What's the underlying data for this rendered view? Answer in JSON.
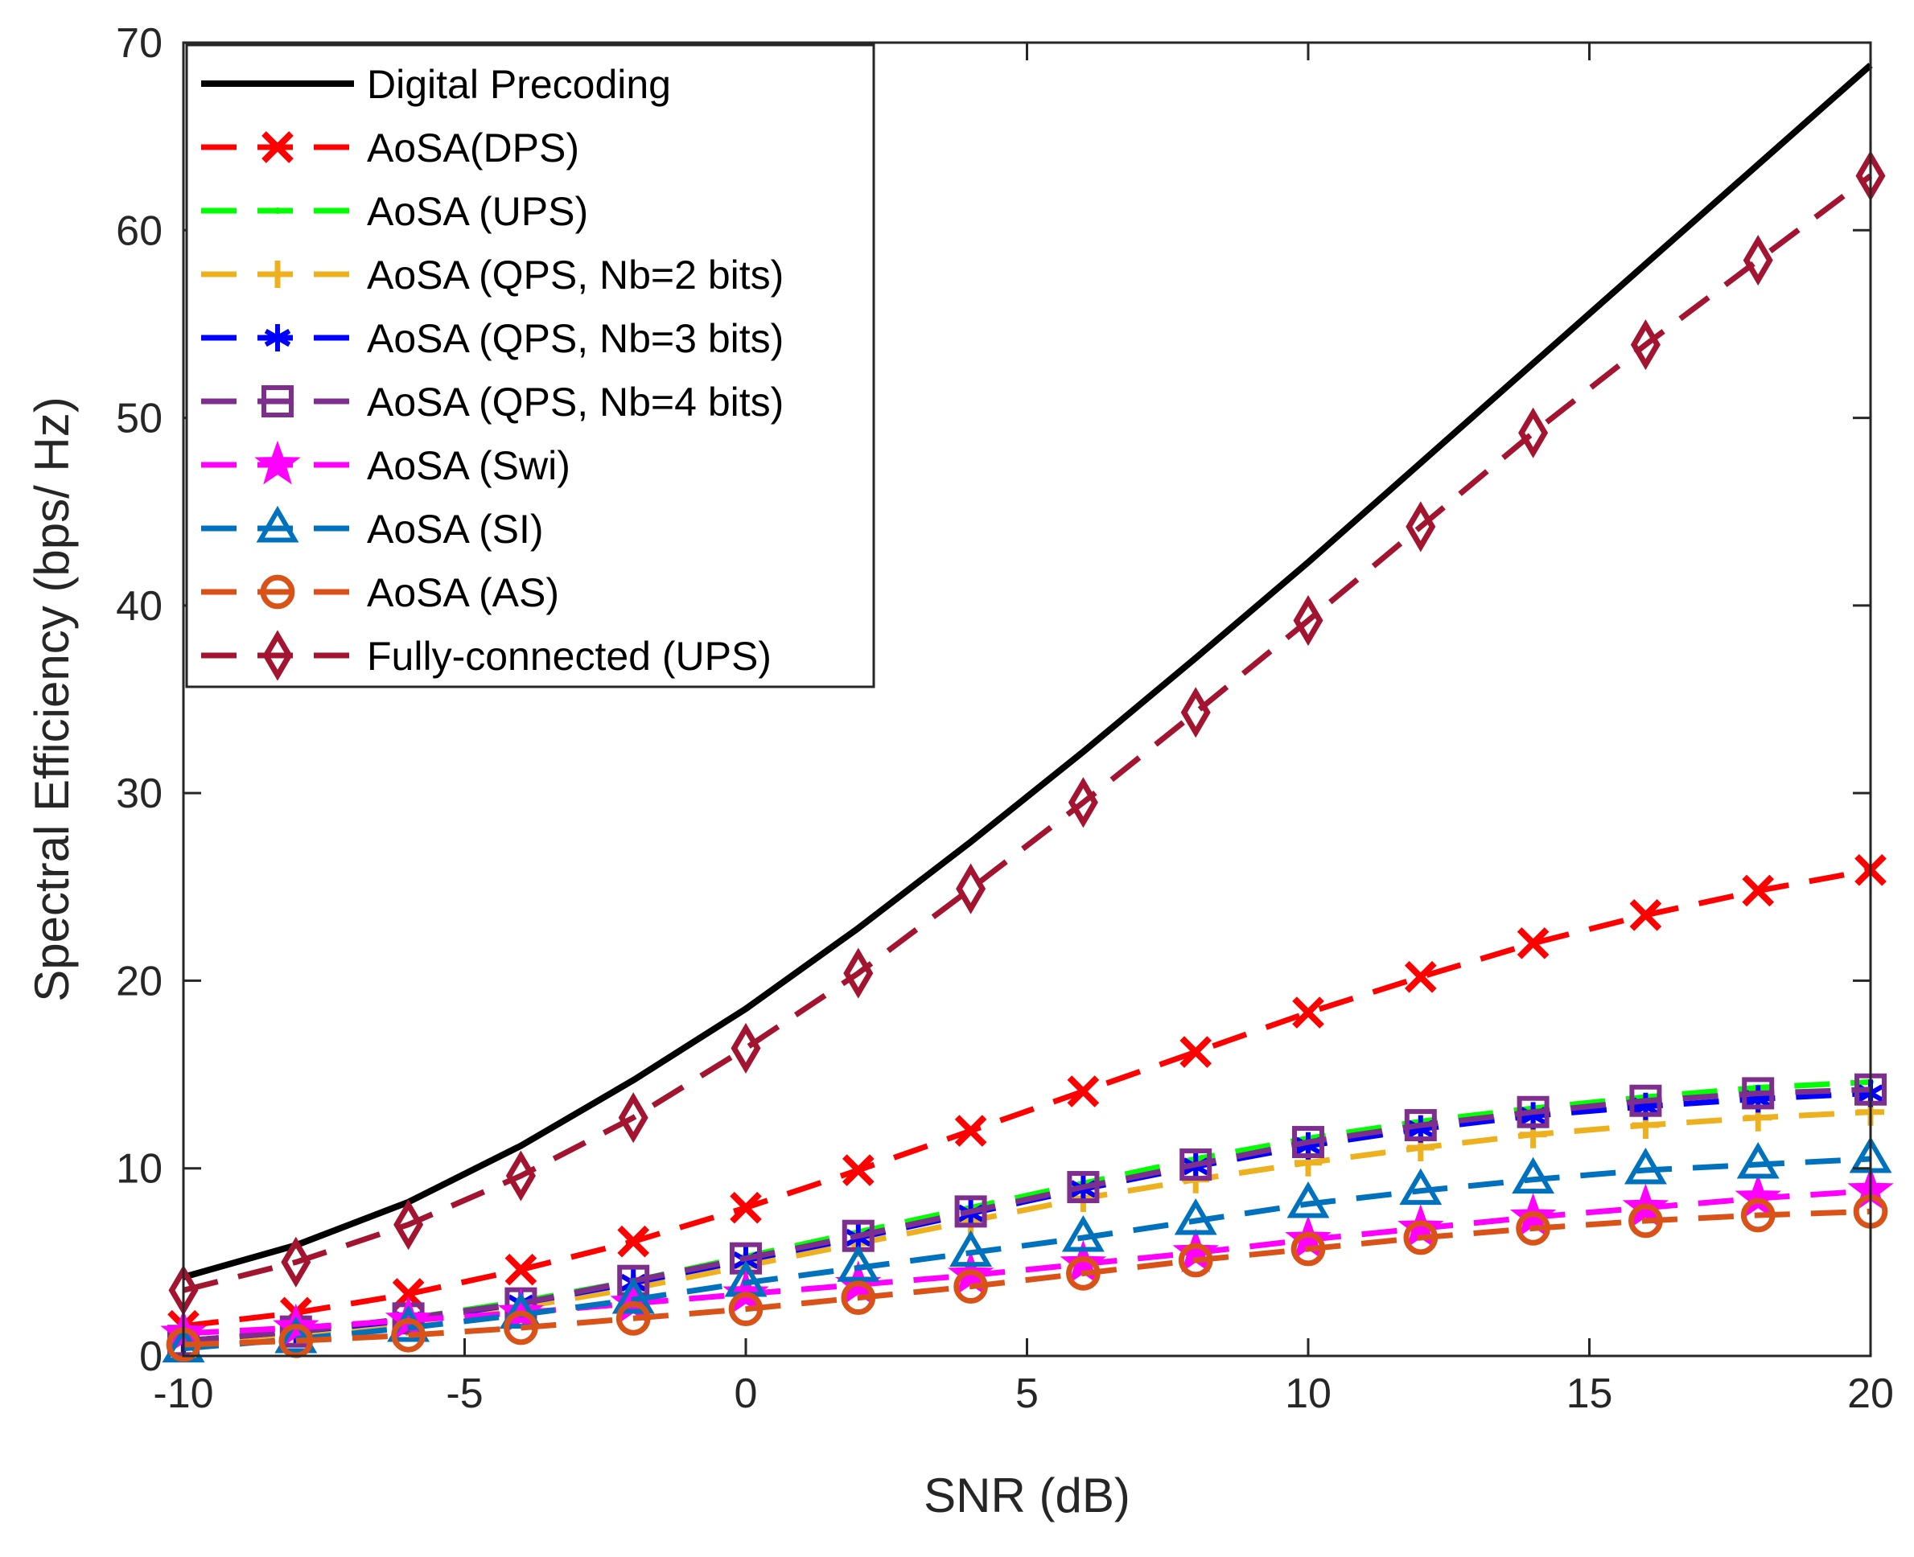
{
  "chart_data": {
    "type": "line",
    "title": "",
    "xlabel": "SNR (dB)",
    "ylabel": "Spectral Efficiency (bps/ Hz)",
    "xlim": [
      -10,
      20
    ],
    "ylim": [
      0,
      70
    ],
    "xticks": [
      -10,
      -5,
      0,
      5,
      10,
      15,
      20
    ],
    "xtick_labels": [
      "-10",
      "-5",
      "0",
      "5",
      "10",
      "15",
      "20"
    ],
    "yticks": [
      0,
      10,
      20,
      30,
      40,
      50,
      60,
      70
    ],
    "ytick_labels": [
      "0",
      "10",
      "20",
      "30",
      "40",
      "50",
      "60",
      "70"
    ],
    "grid": false,
    "legend_position": "top-left",
    "x": [
      -10,
      -8,
      -6,
      -4,
      -2,
      0,
      2,
      4,
      6,
      8,
      10,
      12,
      14,
      16,
      18,
      20
    ],
    "series": [
      {
        "name": "Digital Precoding",
        "color": "#000000",
        "dash": "solid",
        "marker": "none",
        "values": [
          4.2,
          5.9,
          8.2,
          11.2,
          14.7,
          18.5,
          22.8,
          27.4,
          32.2,
          37.2,
          42.3,
          47.6,
          52.9,
          58.2,
          63.5,
          68.8
        ]
      },
      {
        "name": "AoSA(DPS)",
        "color": "#ff0000",
        "dash": "dashed",
        "marker": "x",
        "values": [
          1.6,
          2.3,
          3.3,
          4.6,
          6.1,
          7.9,
          9.9,
          12.0,
          14.1,
          16.2,
          18.3,
          20.2,
          22.0,
          23.5,
          24.8,
          25.9
        ]
      },
      {
        "name": "AoSA (UPS)",
        "color": "#00ff00",
        "dash": "dashed",
        "marker": "dot",
        "values": [
          0.8,
          1.3,
          2.0,
          2.9,
          4.0,
          5.3,
          6.6,
          7.9,
          9.2,
          10.5,
          11.6,
          12.5,
          13.2,
          13.8,
          14.3,
          14.6
        ]
      },
      {
        "name": "AoSA (QPS, Nb=2 bits)",
        "color": "#edb120",
        "dash": "dashed",
        "marker": "plus",
        "values": [
          0.7,
          1.2,
          1.8,
          2.6,
          3.6,
          4.8,
          6.0,
          7.2,
          8.4,
          9.4,
          10.3,
          11.1,
          11.8,
          12.3,
          12.7,
          13.0
        ]
      },
      {
        "name": "AoSA (QPS, Nb=3 bits)",
        "color": "#0000ff",
        "dash": "dashed",
        "marker": "asterisk",
        "values": [
          0.8,
          1.3,
          1.9,
          2.8,
          3.9,
          5.1,
          6.3,
          7.6,
          8.9,
          10.1,
          11.2,
          12.1,
          12.8,
          13.3,
          13.7,
          14.0
        ]
      },
      {
        "name": "AoSA (QPS, Nb=4 bits)",
        "color": "#7e2f8e",
        "dash": "dashed",
        "marker": "square",
        "values": [
          0.8,
          1.3,
          2.0,
          2.8,
          4.0,
          5.2,
          6.4,
          7.7,
          9.0,
          10.2,
          11.4,
          12.3,
          13.0,
          13.6,
          14.0,
          14.2
        ]
      },
      {
        "name": "AoSA (Swi)",
        "color": "#ff00ff",
        "dash": "dashed",
        "marker": "star",
        "values": [
          1.2,
          1.5,
          1.9,
          2.3,
          2.8,
          3.3,
          3.8,
          4.3,
          4.9,
          5.5,
          6.2,
          6.8,
          7.4,
          7.9,
          8.4,
          8.8
        ]
      },
      {
        "name": "AoSA (SI)",
        "color": "#0072bd",
        "dash": "dashed",
        "marker": "triangle",
        "values": [
          0.4,
          0.9,
          1.5,
          2.2,
          3.0,
          3.9,
          4.7,
          5.5,
          6.3,
          7.2,
          8.1,
          8.8,
          9.4,
          9.9,
          10.2,
          10.5
        ]
      },
      {
        "name": "AoSA (AS)",
        "color": "#d95319",
        "dash": "dashed",
        "marker": "circle",
        "values": [
          0.6,
          0.8,
          1.1,
          1.5,
          2.0,
          2.5,
          3.1,
          3.7,
          4.4,
          5.1,
          5.7,
          6.3,
          6.8,
          7.2,
          7.5,
          7.7
        ]
      },
      {
        "name": "Fully-connected (UPS)",
        "color": "#a2142f",
        "dash": "dashed",
        "marker": "diamond",
        "values": [
          3.5,
          5.0,
          7.0,
          9.6,
          12.7,
          16.4,
          20.4,
          24.9,
          29.5,
          34.3,
          39.2,
          44.2,
          49.2,
          53.9,
          58.4,
          62.9
        ]
      }
    ]
  }
}
